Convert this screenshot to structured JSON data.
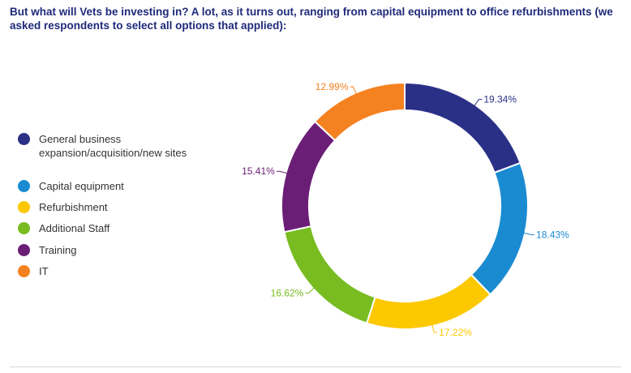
{
  "title": "But what will Vets be investing in? A lot, as it turns out, ranging from capital equipment to office refurbishments (we asked respondents to select all options that applied):",
  "chart_data": {
    "type": "pie",
    "donut": true,
    "legend_position": "left",
    "slices": [
      {
        "label": "General business expansion/acquisition/new sites",
        "value": 19.34,
        "display": "19.34%",
        "color": "#2b3087"
      },
      {
        "label": "Capital equipment",
        "value": 18.43,
        "display": "18.43%",
        "color": "#1a8bd1"
      },
      {
        "label": "Refurbishment",
        "value": 17.22,
        "display": "17.22%",
        "color": "#fcc800"
      },
      {
        "label": "Additional Staff",
        "value": 16.62,
        "display": "16.62%",
        "color": "#78bc21"
      },
      {
        "label": "Training",
        "value": 15.41,
        "display": "15.41%",
        "color": "#6b1e76"
      },
      {
        "label": "IT",
        "value": 12.99,
        "display": "12.99%",
        "color": "#f58220"
      }
    ]
  }
}
